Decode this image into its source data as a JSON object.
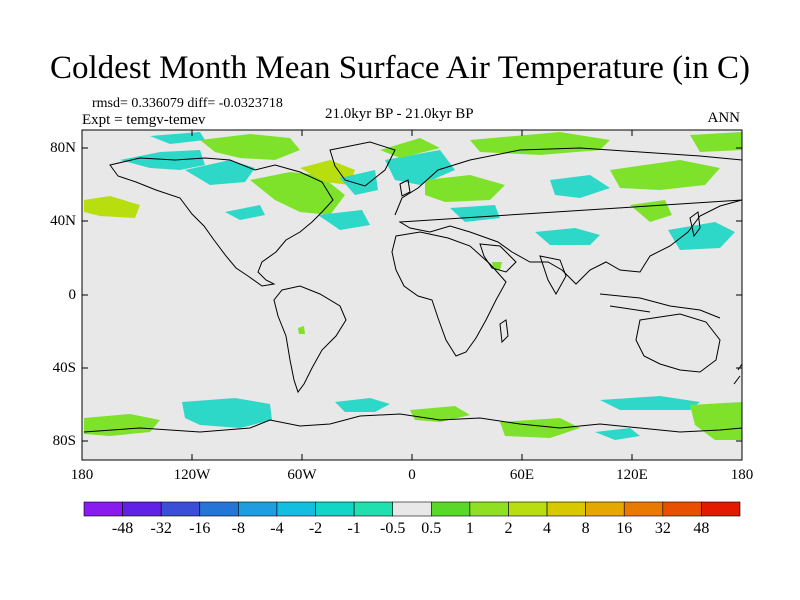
{
  "title": "Coldest Month Mean Surface Air Temperature (in C)",
  "stats": "rmsd= 0.336079 diff= -0.0323718",
  "experiment": "Expt = temgv-temev",
  "period": "21.0kyr BP - 21.0kyr BP",
  "season": "ANN",
  "lat_ticks": [
    "80N",
    "40N",
    "0",
    "40S",
    "80S"
  ],
  "lon_ticks": [
    "180",
    "120W",
    "60W",
    "0",
    "60E",
    "120E",
    "180"
  ],
  "colorbar": {
    "labels": [
      "-48",
      "-32",
      "-16",
      "-8",
      "-4",
      "-2",
      "-1",
      "-0.5",
      "0.5",
      "1",
      "2",
      "4",
      "8",
      "16",
      "32",
      "48"
    ],
    "colors": [
      "#8a1bf0",
      "#5f22e6",
      "#3a4ed8",
      "#2475d6",
      "#1e9ee0",
      "#12bfe0",
      "#10d6c8",
      "#20e0b0",
      "#e8e8e8",
      "#5ad82a",
      "#8ee020",
      "#b8de10",
      "#d8c800",
      "#e4a800",
      "#e87a00",
      "#e85000",
      "#e41a00"
    ]
  },
  "map": {
    "background": "#e8e8e8",
    "warm_color": "#7ee22a",
    "cool_color": "#2ed8c8",
    "projection": "cylindrical equidistant, 180W to 180E, 90S to 90N"
  }
}
